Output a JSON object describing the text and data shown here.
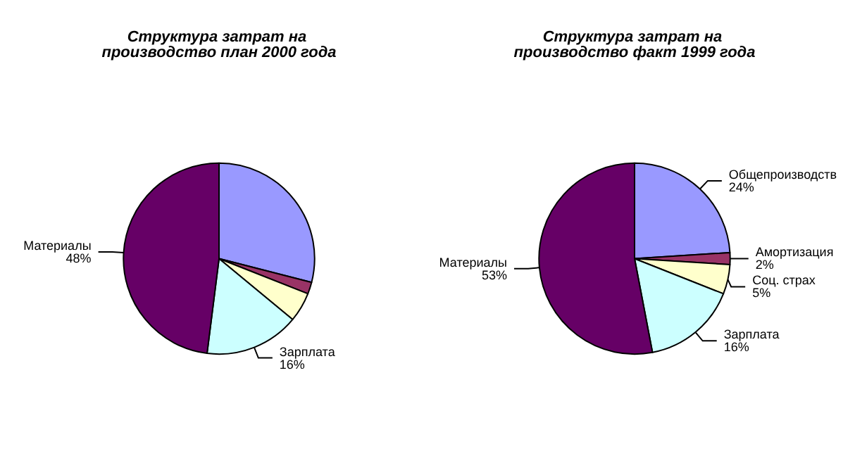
{
  "chart_data": [
    {
      "type": "pie",
      "title": "Структура затрат на производство план 2000 года",
      "categories": [
        null,
        null,
        null,
        "Зарплата",
        "Материалы"
      ],
      "values": [
        29,
        2,
        5,
        16,
        48
      ],
      "colors": [
        "#9999ff",
        "#993366",
        "#ffffcc",
        "#ccffff",
        "#660066"
      ],
      "value_labels": [
        null,
        null,
        null,
        "16%",
        "48%"
      ]
    },
    {
      "type": "pie",
      "title": "Структура затрат на производство факт 1999 года",
      "categories": [
        "Общепроизводств",
        "Амортизация",
        "Соц. страх",
        "Зарплата",
        "Материалы"
      ],
      "values": [
        24,
        2,
        5,
        16,
        53
      ],
      "colors": [
        "#9999ff",
        "#993366",
        "#ffffcc",
        "#ccffff",
        "#660066"
      ],
      "value_labels": [
        "24%",
        "2%",
        "5%",
        "16%",
        "53%"
      ]
    }
  ]
}
